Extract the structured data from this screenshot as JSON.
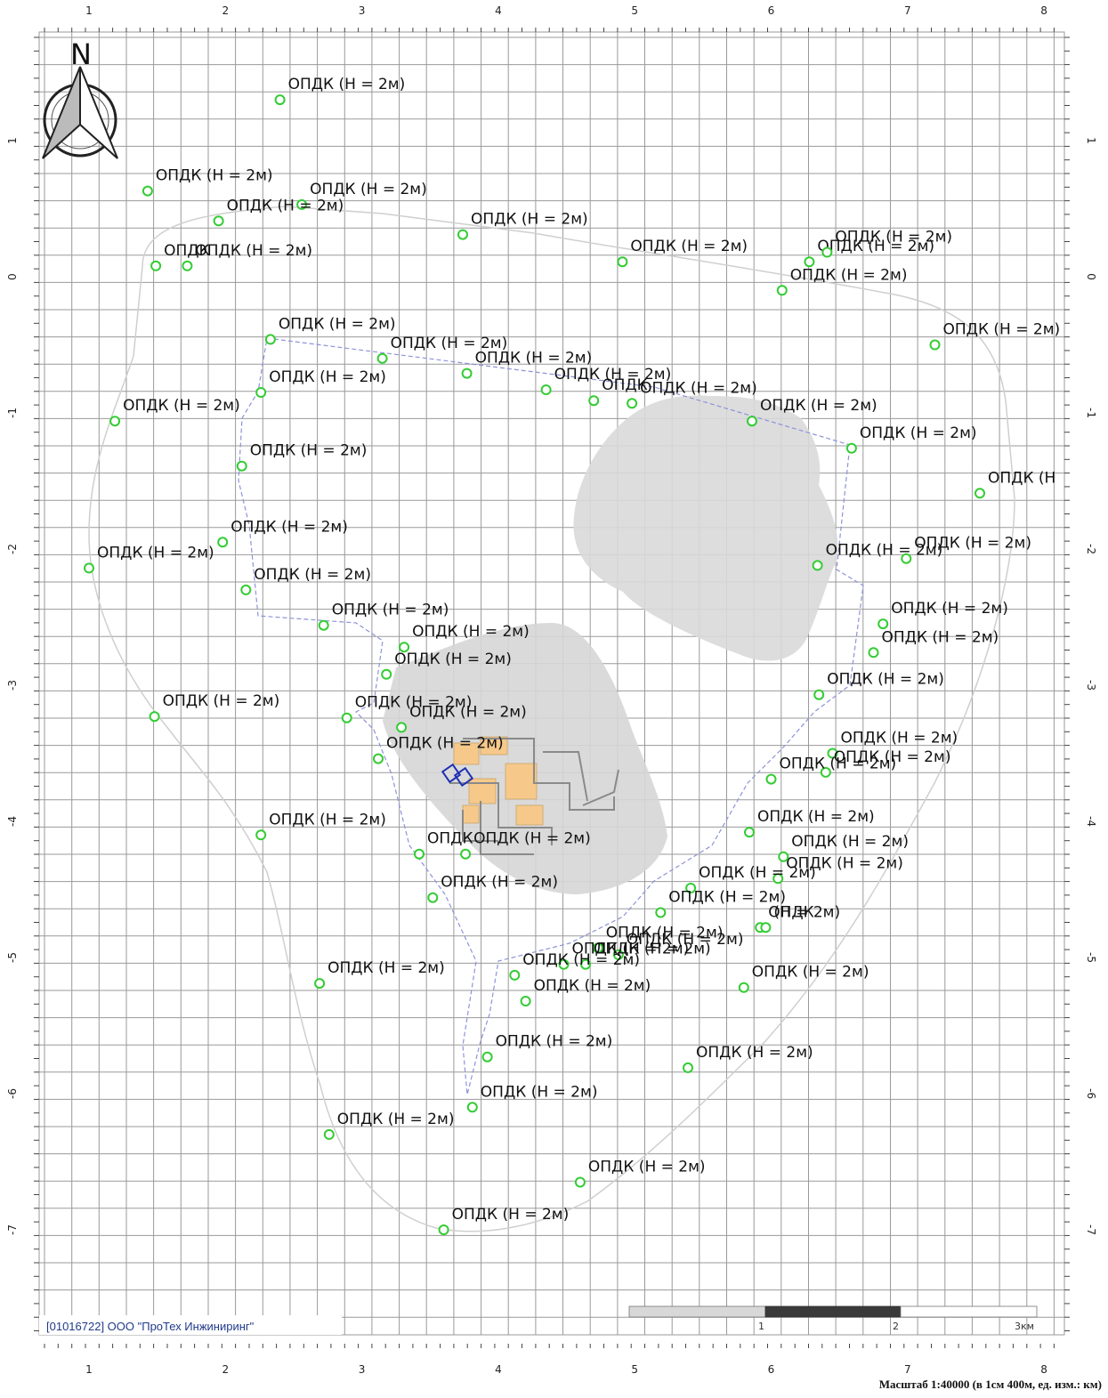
{
  "map": {
    "north_label": "N",
    "label_style": {
      "marker_color": "#33cc33",
      "text_color": "#111111"
    },
    "top_ticks": [
      "1",
      "2",
      "3",
      "4",
      "5",
      "6",
      "7",
      "8"
    ],
    "bottom_ticks": [
      "1",
      "2",
      "3",
      "4",
      "5",
      "6",
      "7",
      "8"
    ],
    "left_ticks": [
      "1",
      "0",
      "-1",
      "-2",
      "-3",
      "-4",
      "-5",
      "-6",
      "-7"
    ],
    "right_ticks": [
      "1",
      "0",
      "-1",
      "-2",
      "-3",
      "-4",
      "-5",
      "-6",
      "-7"
    ],
    "company_label": "[01016722] ООО \"ПроТех Инжиниринг\"",
    "scale_bar": {
      "labels": [
        "1",
        "2",
        "3км"
      ]
    },
    "scale_caption": "Масштаб 1:40000 (в 1см 400м, ед. изм.: км)",
    "points": [
      {
        "x": 2.4,
        "y": 1.3,
        "label": "ОПДК (Н = 2м)"
      },
      {
        "x": 1.43,
        "y": 0.63,
        "label": "ОПДК (Н = 2м)"
      },
      {
        "x": 2.56,
        "y": 0.53,
        "label": "ОПДК (Н = 2м)"
      },
      {
        "x": 1.95,
        "y": 0.41,
        "label": "ОПДК (Н = 2м)"
      },
      {
        "x": 3.74,
        "y": 0.31,
        "label": "ОПДК (Н = 2м)"
      },
      {
        "x": 1.49,
        "y": 0.08,
        "label": "ОПДК"
      },
      {
        "x": 1.72,
        "y": 0.08,
        "label": "ОПДК (Н = 2м)"
      },
      {
        "x": 4.91,
        "y": 0.11,
        "label": "ОПДК (Н = 2м)"
      },
      {
        "x": 6.28,
        "y": 0.11,
        "label": "ОПДК (Н = 2м)"
      },
      {
        "x": 6.41,
        "y": 0.18,
        "label": "ОПДК (Н = 2м)"
      },
      {
        "x": 6.08,
        "y": -0.1,
        "label": "ОПДК (Н = 2м)"
      },
      {
        "x": 7.2,
        "y": -0.5,
        "label": "ОПДК (Н = 2м)"
      },
      {
        "x": 2.33,
        "y": -0.46,
        "label": "ОПДК (Н = 2м)"
      },
      {
        "x": 3.15,
        "y": -0.6,
        "label": "ОПДК (Н = 2м)"
      },
      {
        "x": 3.77,
        "y": -0.71,
        "label": "ОПДК (Н = 2м)"
      },
      {
        "x": 4.35,
        "y": -0.83,
        "label": "ОПДК (Н = 2м)"
      },
      {
        "x": 4.7,
        "y": -0.91,
        "label": "ОПДК"
      },
      {
        "x": 4.98,
        "y": -0.93,
        "label": "ОПДК (Н = 2м)"
      },
      {
        "x": 2.26,
        "y": -0.85,
        "label": "ОПДК (Н = 2м)"
      },
      {
        "x": 1.19,
        "y": -1.06,
        "label": "ОПДК (Н = 2м)"
      },
      {
        "x": 5.86,
        "y": -1.06,
        "label": "ОПДК (Н = 2м)"
      },
      {
        "x": 6.59,
        "y": -1.26,
        "label": "ОПДК (Н = 2м)"
      },
      {
        "x": 2.12,
        "y": -1.39,
        "label": "ОПДК (Н = 2м)"
      },
      {
        "x": 7.53,
        "y": -1.59,
        "label": "ОПДК (Н"
      },
      {
        "x": 1.98,
        "y": -1.95,
        "label": "ОПДК (Н = 2м)"
      },
      {
        "x": 1.0,
        "y": -2.14,
        "label": "ОПДК (Н = 2м)"
      },
      {
        "x": 6.34,
        "y": -2.12,
        "label": "ОПДК (Н = 2м)"
      },
      {
        "x": 6.99,
        "y": -2.07,
        "label": "ОПДК (Н = 2м)"
      },
      {
        "x": 2.15,
        "y": -2.3,
        "label": "ОПДК (Н = 2м)"
      },
      {
        "x": 2.72,
        "y": -2.56,
        "label": "ОПДК (Н = 2м)"
      },
      {
        "x": 6.82,
        "y": -2.55,
        "label": "ОПДК (Н = 2м)"
      },
      {
        "x": 6.75,
        "y": -2.76,
        "label": "ОПДК (Н = 2м)"
      },
      {
        "x": 3.31,
        "y": -2.72,
        "label": "ОПДК (Н = 2м)"
      },
      {
        "x": 3.18,
        "y": -2.92,
        "label": "ОПДК (Н = 2м)"
      },
      {
        "x": 6.35,
        "y": -3.07,
        "label": "ОПДК (Н = 2м)"
      },
      {
        "x": 1.48,
        "y": -3.23,
        "label": "ОПДК (Н = 2м)"
      },
      {
        "x": 2.89,
        "y": -3.24,
        "label": "ОПДК (Н = 2м)"
      },
      {
        "x": 3.29,
        "y": -3.31,
        "label": "ОПДК (Н = 2м)"
      },
      {
        "x": 3.12,
        "y": -3.54,
        "label": "ОПДК (Н = 2м)"
      },
      {
        "x": 6.45,
        "y": -3.5,
        "label": "ОПДК (Н = 2м)"
      },
      {
        "x": 6.4,
        "y": -3.64,
        "label": "ОПДК (Н = 2м)"
      },
      {
        "x": 6.0,
        "y": -3.69,
        "label": "ОПДК (Н = 2м)"
      },
      {
        "x": 5.84,
        "y": -4.08,
        "label": "ОПДК (Н = 2м)"
      },
      {
        "x": 2.26,
        "y": -4.1,
        "label": "ОПДК (Н = 2м)"
      },
      {
        "x": 3.42,
        "y": -4.24,
        "label": "ОПДК"
      },
      {
        "x": 3.76,
        "y": -4.24,
        "label": "ОПДК (Н = 2м)"
      },
      {
        "x": 6.05,
        "y": -4.42,
        "label": "ОПДК (Н = 2м)"
      },
      {
        "x": 6.09,
        "y": -4.26,
        "label": "ОПДК (Н = 2м)"
      },
      {
        "x": 5.41,
        "y": -4.49,
        "label": "ОПДК (Н = 2м)"
      },
      {
        "x": 3.52,
        "y": -4.56,
        "label": "ОПДК (Н = 2м)"
      },
      {
        "x": 5.19,
        "y": -4.67,
        "label": "ОПДК (Н = 2м)"
      },
      {
        "x": 5.92,
        "y": -4.78,
        "label": "ОПДК"
      },
      {
        "x": 5.96,
        "y": -4.78,
        "label": "(Н = 2м)"
      },
      {
        "x": 4.73,
        "y": -4.93,
        "label": "ОПДК (Н = 2м)"
      },
      {
        "x": 4.88,
        "y": -4.98,
        "label": "ОПДК (Н = 2м)"
      },
      {
        "x": 4.64,
        "y": -5.05,
        "label": "ОПДК (Н = 2м)"
      },
      {
        "x": 4.48,
        "y": -5.05,
        "label": "ОПДК (Н = 2м)"
      },
      {
        "x": 4.12,
        "y": -5.13,
        "label": "ОПДК (Н = 2м)"
      },
      {
        "x": 2.69,
        "y": -5.19,
        "label": "ОПДК (Н = 2м)"
      },
      {
        "x": 5.8,
        "y": -5.22,
        "label": "ОПДК (Н = 2м)"
      },
      {
        "x": 4.2,
        "y": -5.32,
        "label": "ОПДК (Н = 2м)"
      },
      {
        "x": 3.92,
        "y": -5.73,
        "label": "ОПДК (Н = 2м)"
      },
      {
        "x": 5.39,
        "y": -5.81,
        "label": "ОПДК (Н = 2м)"
      },
      {
        "x": 3.81,
        "y": -6.1,
        "label": "ОПДК (Н = 2м)"
      },
      {
        "x": 2.76,
        "y": -6.3,
        "label": "ОПДК (Н = 2м)"
      },
      {
        "x": 4.6,
        "y": -6.65,
        "label": "ОПДК (Н = 2м)"
      },
      {
        "x": 3.6,
        "y": -7.0,
        "label": "ОПДК (Н = 2м)"
      }
    ]
  }
}
